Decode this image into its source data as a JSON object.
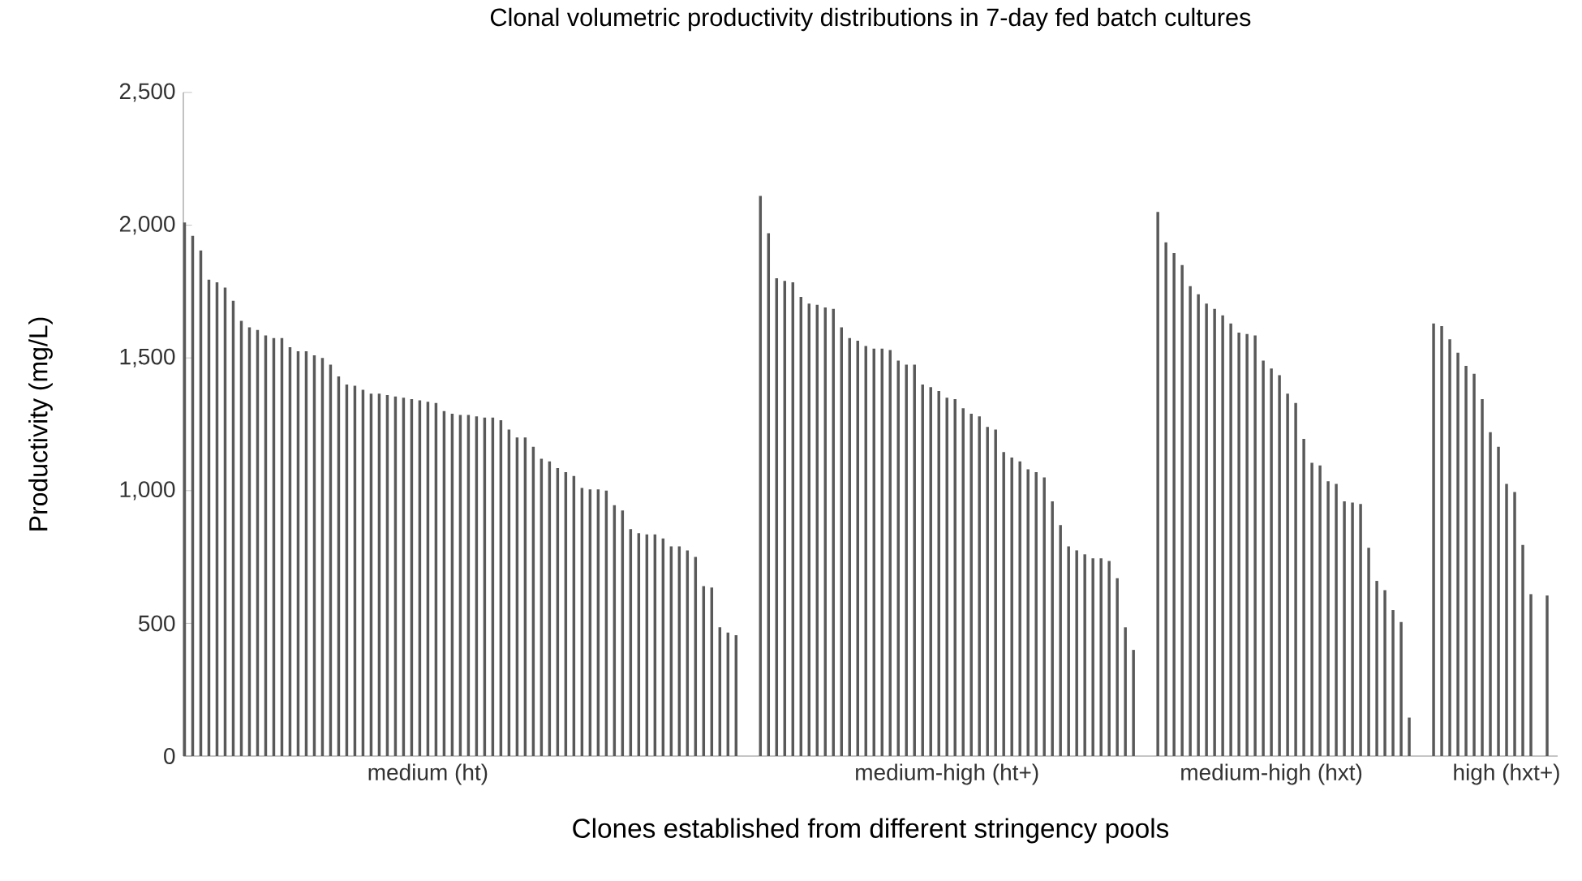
{
  "chart_data": {
    "type": "bar",
    "title": "Clonal volumetric productivity distributions in 7-day fed batch cultures",
    "xlabel": "Clones established from different stringency pools",
    "ylabel": "Productivity (mg/L)",
    "categories": [
      null,
      null,
      null,
      null,
      null,
      null,
      null,
      null,
      null,
      null,
      null,
      null,
      null,
      null,
      null,
      null,
      null,
      null,
      null,
      null,
      null,
      null,
      null,
      null,
      null,
      null,
      null,
      null,
      null,
      null,
      "medium (ht)",
      null,
      null,
      null,
      null,
      null,
      null,
      null,
      null,
      null,
      null,
      null,
      null,
      null,
      null,
      null,
      null,
      null,
      null,
      null,
      null,
      null,
      null,
      null,
      null,
      null,
      null,
      null,
      null,
      null,
      null,
      null,
      null,
      null,
      null,
      null,
      null,
      null,
      null,
      null,
      null,
      null,
      null,
      null,
      null,
      null,
      null,
      null,
      null,
      null,
      null,
      null,
      null,
      null,
      null,
      null,
      null,
      null,
      null,
      null,
      null,
      null,
      null,
      null,
      "medium-high (ht+)",
      null,
      null,
      null,
      null,
      null,
      null,
      null,
      null,
      null,
      null,
      null,
      null,
      null,
      null,
      null,
      null,
      null,
      null,
      null,
      null,
      null,
      null,
      null,
      null,
      null,
      null,
      null,
      null,
      null,
      null,
      null,
      null,
      null,
      null,
      null,
      null,
      null,
      null,
      null,
      "medium-high (hxt)",
      null,
      null,
      null,
      null,
      null,
      null,
      null,
      null,
      null,
      null,
      null,
      null,
      null,
      null,
      null,
      null,
      null,
      null,
      null,
      null,
      null,
      null,
      null,
      null,
      null,
      null,
      null,
      null,
      "high (hxt+)",
      null,
      null,
      null,
      null,
      null
    ],
    "values": [
      2010,
      1960,
      1905,
      1795,
      1785,
      1765,
      1715,
      1640,
      1615,
      1605,
      1585,
      1575,
      1575,
      1540,
      1525,
      1525,
      1510,
      1500,
      1475,
      1430,
      1400,
      1395,
      1380,
      1365,
      1365,
      1360,
      1355,
      1350,
      1345,
      1340,
      1335,
      1330,
      1300,
      1290,
      1285,
      1285,
      1280,
      1275,
      1275,
      1265,
      1230,
      1200,
      1200,
      1165,
      1120,
      1110,
      1085,
      1070,
      1055,
      1010,
      1005,
      1005,
      1000,
      945,
      925,
      855,
      840,
      835,
      835,
      820,
      790,
      790,
      775,
      750,
      640,
      635,
      485,
      465,
      455,
      null,
      null,
      2110,
      1970,
      1800,
      1790,
      1785,
      1730,
      1705,
      1700,
      1690,
      1685,
      1615,
      1575,
      1565,
      1545,
      1535,
      1535,
      1530,
      1490,
      1475,
      1475,
      1400,
      1390,
      1375,
      1350,
      1345,
      1310,
      1290,
      1280,
      1240,
      1230,
      1145,
      1125,
      1110,
      1080,
      1070,
      1050,
      960,
      870,
      790,
      775,
      760,
      745,
      745,
      735,
      670,
      485,
      400,
      null,
      null,
      2050,
      1935,
      1895,
      1850,
      1770,
      1740,
      1705,
      1685,
      1660,
      1630,
      1595,
      1590,
      1585,
      1490,
      1460,
      1435,
      1365,
      1330,
      1195,
      1105,
      1095,
      1035,
      1025,
      960,
      955,
      950,
      785,
      660,
      625,
      550,
      505,
      145,
      null,
      null,
      1630,
      1620,
      1570,
      1520,
      1470,
      1440,
      1345,
      1220,
      1165,
      1025,
      995,
      795,
      610,
      null,
      605
    ],
    "color": "#595959",
    "ylim": [
      0,
      2500
    ],
    "yticks": [
      0,
      500,
      {
        "value": 1000,
        "label": "1,000"
      },
      {
        "value": 1500,
        "label": "1,500"
      },
      {
        "value": 2000,
        "label": "2,000"
      },
      {
        "value": 2500,
        "label": "2,500"
      }
    ]
  }
}
